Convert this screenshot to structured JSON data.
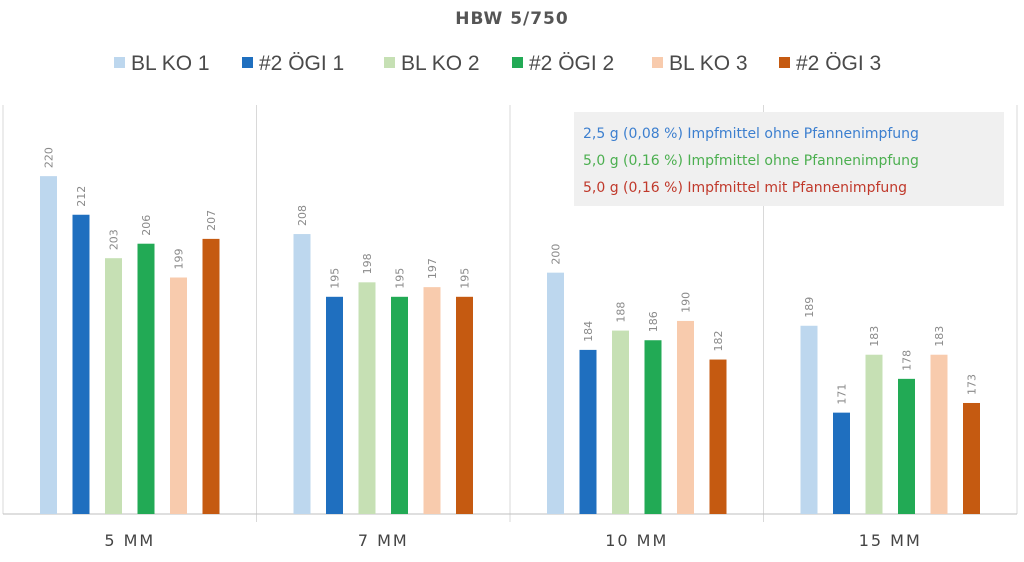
{
  "chart_data": {
    "type": "bar",
    "title": "HBW 5/750",
    "categories": [
      "5 MM",
      "7 MM",
      "10 MM",
      "15 MM"
    ],
    "ylim": [
      150,
      225
    ],
    "grid": false,
    "legend_position": "top",
    "series": [
      {
        "name": "BL KO 1",
        "color": "#bdd7ee",
        "values": [
          220,
          208,
          200,
          189
        ]
      },
      {
        "name": "#2 ÖGI 1",
        "color": "#1f6fbf",
        "values": [
          212,
          195,
          184,
          171
        ]
      },
      {
        "name": "BL KO 2",
        "color": "#c6e0b4",
        "values": [
          203,
          198,
          188,
          183
        ]
      },
      {
        "name": "#2 ÖGI 2",
        "color": "#22aa55",
        "values": [
          206,
          195,
          186,
          178
        ]
      },
      {
        "name": "BL KO 3",
        "color": "#f8cbad",
        "values": [
          199,
          197,
          190,
          183
        ]
      },
      {
        "name": "#2 ÖGI 3",
        "color": "#c55a11",
        "values": [
          207,
          195,
          182,
          173
        ]
      }
    ],
    "annotations": [
      {
        "text": "2,5 g (0,08 %) Impfmittel ohne Pfannenimpfung",
        "color": "#3c7fcf"
      },
      {
        "text": "5,0 g (0,16 %) Impfmittel ohne Pfannenimpfung",
        "color": "#4caf50"
      },
      {
        "text": "5,0 g (0,16 %) Impfmittel mit Pfannenimpfung",
        "color": "#c0392b"
      }
    ]
  }
}
